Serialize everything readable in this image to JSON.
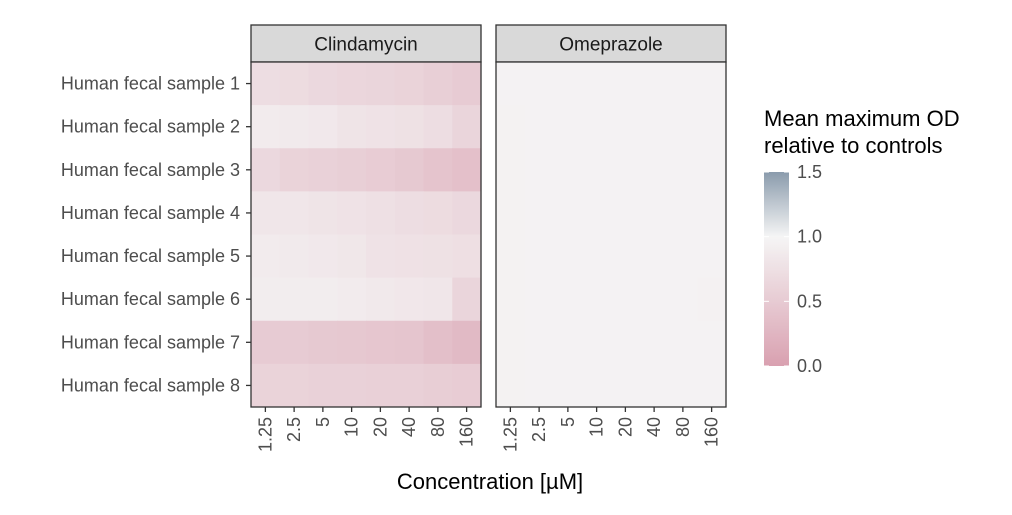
{
  "chart_data": {
    "type": "heatmap",
    "xlabel": "Concentration  [µM]",
    "x": [
      "1.25",
      "2.5",
      "5",
      "10",
      "20",
      "40",
      "80",
      "160"
    ],
    "y": [
      "Human fecal sample 1",
      "Human fecal sample 2",
      "Human fecal sample 3",
      "Human fecal sample 4",
      "Human fecal sample 5",
      "Human fecal sample 6",
      "Human fecal sample 7",
      "Human fecal sample 8"
    ],
    "facets": [
      {
        "name": "Clindamycin",
        "values": [
          [
            0.72,
            0.7,
            0.66,
            0.64,
            0.62,
            0.6,
            0.55,
            0.5
          ],
          [
            0.88,
            0.87,
            0.85,
            0.8,
            0.78,
            0.76,
            0.72,
            0.62
          ],
          [
            0.66,
            0.6,
            0.58,
            0.55,
            0.52,
            0.48,
            0.42,
            0.38
          ],
          [
            0.82,
            0.82,
            0.8,
            0.78,
            0.75,
            0.72,
            0.7,
            0.66
          ],
          [
            0.88,
            0.87,
            0.85,
            0.83,
            0.78,
            0.77,
            0.76,
            0.74
          ],
          [
            0.9,
            0.9,
            0.9,
            0.88,
            0.86,
            0.84,
            0.82,
            0.62
          ],
          [
            0.5,
            0.5,
            0.48,
            0.47,
            0.45,
            0.43,
            0.36,
            0.3
          ],
          [
            0.6,
            0.6,
            0.58,
            0.58,
            0.57,
            0.56,
            0.54,
            0.52
          ]
        ]
      },
      {
        "name": "Omeprazole",
        "values": [
          [
            0.97,
            0.97,
            0.97,
            0.97,
            0.97,
            0.97,
            0.97,
            0.97
          ],
          [
            0.96,
            0.97,
            0.97,
            0.97,
            0.97,
            0.97,
            0.97,
            0.97
          ],
          [
            0.96,
            0.97,
            0.97,
            0.97,
            0.97,
            0.97,
            0.97,
            0.97
          ],
          [
            0.96,
            0.97,
            0.97,
            0.97,
            0.97,
            0.97,
            0.97,
            0.97
          ],
          [
            0.96,
            0.97,
            0.97,
            0.97,
            0.97,
            0.97,
            0.97,
            0.97
          ],
          [
            0.96,
            0.97,
            0.97,
            0.97,
            0.97,
            0.97,
            0.97,
            0.95
          ],
          [
            0.96,
            0.97,
            0.97,
            0.97,
            0.97,
            0.97,
            0.97,
            0.97
          ],
          [
            0.96,
            0.97,
            0.97,
            0.97,
            0.97,
            0.97,
            0.97,
            0.97
          ]
        ]
      }
    ],
    "legend": {
      "title_line1": "Mean maximum OD",
      "title_line2": "relative to controls",
      "placement": "right",
      "range": [
        0,
        1.5
      ],
      "breaks": [
        1.5,
        1.0,
        0.5,
        0.0
      ],
      "break_labels": [
        "1.5",
        "1.0",
        "0.5",
        "0.0"
      ],
      "color_low": "#d9a0b0",
      "color_mid": "#f5f5f5",
      "color_high": "#8a9bac"
    },
    "grid": false
  },
  "colors": {
    "strip_fill": "#d9d9d9",
    "panel_border": "#333333",
    "text": "#4d4d4d",
    "tick": "#333333"
  }
}
